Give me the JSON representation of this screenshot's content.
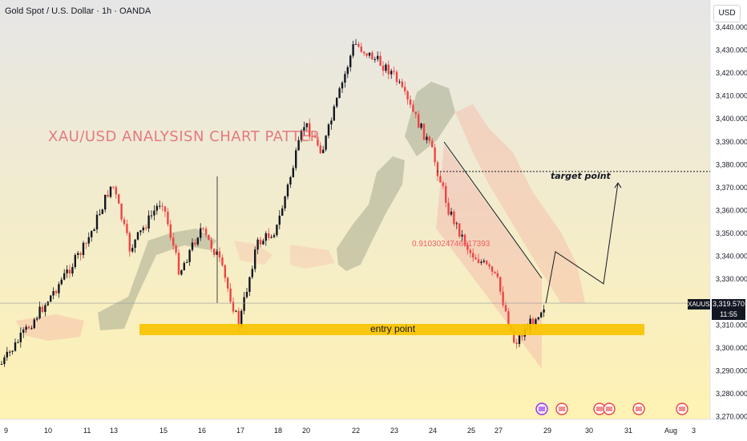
{
  "header": {
    "title": "Gold Spot / U.S. Dollar · 1h · OANDA",
    "currency_button": "USD"
  },
  "annotations": {
    "analysis_title": "XAU/USD  ANALYSISN  CHART PATTER",
    "entry_label": "entry point",
    "target_label": "target point",
    "fib_label": "0.9103024746617393"
  },
  "price_tag": {
    "symbol": "XAUUSD",
    "price": "3,319.570",
    "countdown": "11:55"
  },
  "colors": {
    "background_top": "#e6e6e6",
    "background_bottom": "#fff2b3",
    "up_candle": "#131722",
    "down_candle": "#ef4444",
    "cloud_bull": "#a8ab8f",
    "cloud_bear": "#f7b9a6",
    "entry_zone": "#f8c300",
    "channel": "#f4a3a3"
  },
  "chart_data": {
    "type": "candlestick",
    "title": "Gold Spot / U.S. Dollar · 1h · OANDA",
    "y_axis": {
      "unit": "USD",
      "range": [
        3265,
        3448
      ],
      "ticks": [
        "3,440.000",
        "3,430.000",
        "3,420.000",
        "3,410.000",
        "3,400.000",
        "3,390.000",
        "3,380.000",
        "3,370.000",
        "3,360.000",
        "3,350.000",
        "3,340.000",
        "3,330.000",
        "3,310.000",
        "3,300.000",
        "3,290.000",
        "3,280.000",
        "3,270.000"
      ]
    },
    "x_axis": {
      "ticks": [
        "9",
        "10",
        "11",
        "13",
        "15",
        "16",
        "17",
        "18",
        "20",
        "22",
        "23",
        "24",
        "25",
        "27",
        "29",
        "30",
        "31",
        "Aug",
        "3"
      ]
    },
    "price_path": [
      {
        "x": "9",
        "y": 3292
      },
      {
        "x": "10",
        "y": 3320
      },
      {
        "x": "11",
        "y": 3345
      },
      {
        "x": "13",
        "y": 3372
      },
      {
        "x": "13",
        "y": 3343
      },
      {
        "x": "15",
        "y": 3365
      },
      {
        "x": "15",
        "y": 3333
      },
      {
        "x": "16",
        "y": 3352
      },
      {
        "x": "16",
        "y": 3340
      },
      {
        "x": "17",
        "y": 3310
      },
      {
        "x": "17",
        "y": 3345
      },
      {
        "x": "18",
        "y": 3352
      },
      {
        "x": "20",
        "y": 3398
      },
      {
        "x": "20",
        "y": 3386
      },
      {
        "x": "22",
        "y": 3433
      },
      {
        "x": "23",
        "y": 3420
      },
      {
        "x": "24",
        "y": 3387
      },
      {
        "x": "24",
        "y": 3360
      },
      {
        "x": "25",
        "y": 3342
      },
      {
        "x": "25",
        "y": 3335
      },
      {
        "x": "27",
        "y": 3330
      },
      {
        "x": "27",
        "y": 3302
      },
      {
        "x": "29",
        "y": 3319.57
      }
    ],
    "levels": {
      "entry_zone": [
        3305,
        3310
      ],
      "target": 3377,
      "current_price": 3319.57
    },
    "projection": [
      {
        "x": "29",
        "y": 3319.57
      },
      {
        "x": "29",
        "y": 3342
      },
      {
        "x": "30",
        "y": 3328
      },
      {
        "x": "30",
        "y": 3372
      }
    ]
  }
}
